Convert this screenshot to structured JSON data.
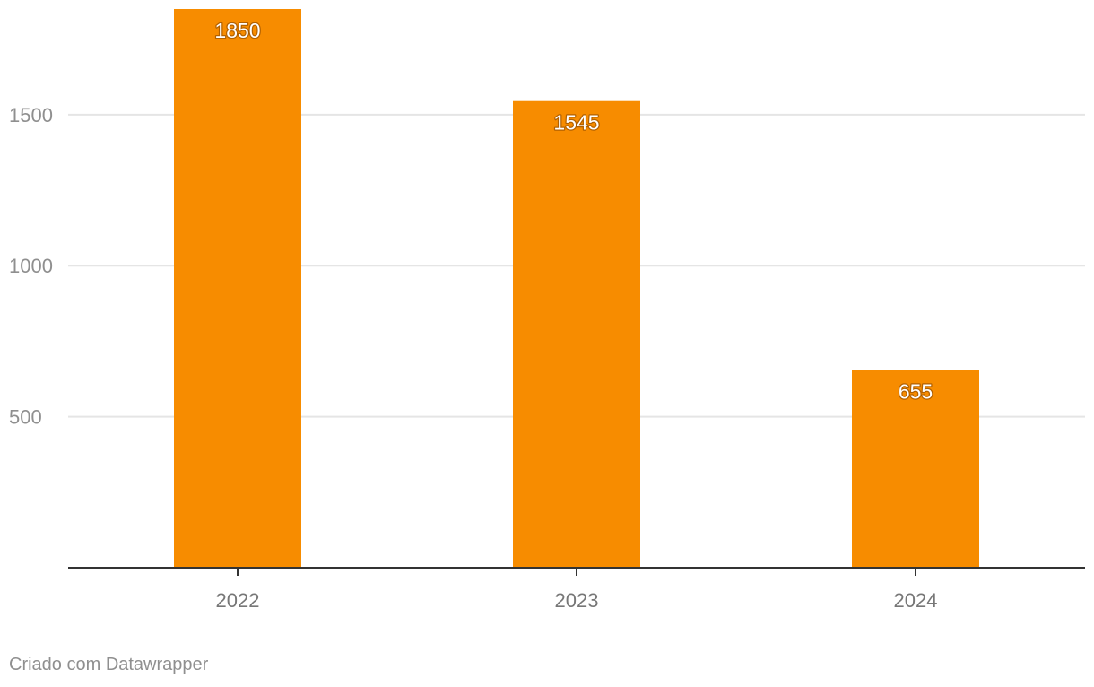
{
  "chart_data": {
    "type": "bar",
    "categories": [
      "2022",
      "2023",
      "2024"
    ],
    "values": [
      1850,
      1545,
      655
    ],
    "data_labels": [
      "1850",
      "1545",
      "655"
    ],
    "y_ticks": [
      500,
      1000,
      1500
    ],
    "y_tick_labels": [
      "500",
      "1000",
      "1500"
    ],
    "ylim": [
      0,
      1850
    ],
    "grid": true,
    "legend": "none",
    "bar_color": "#f78c00",
    "gridline_color": "#e5e5e5",
    "axis_color": "#333333",
    "tick_label_color": "#8f8f8f",
    "x_tick_label_color": "#777777"
  },
  "footer": {
    "credit": "Criado com Datawrapper"
  }
}
